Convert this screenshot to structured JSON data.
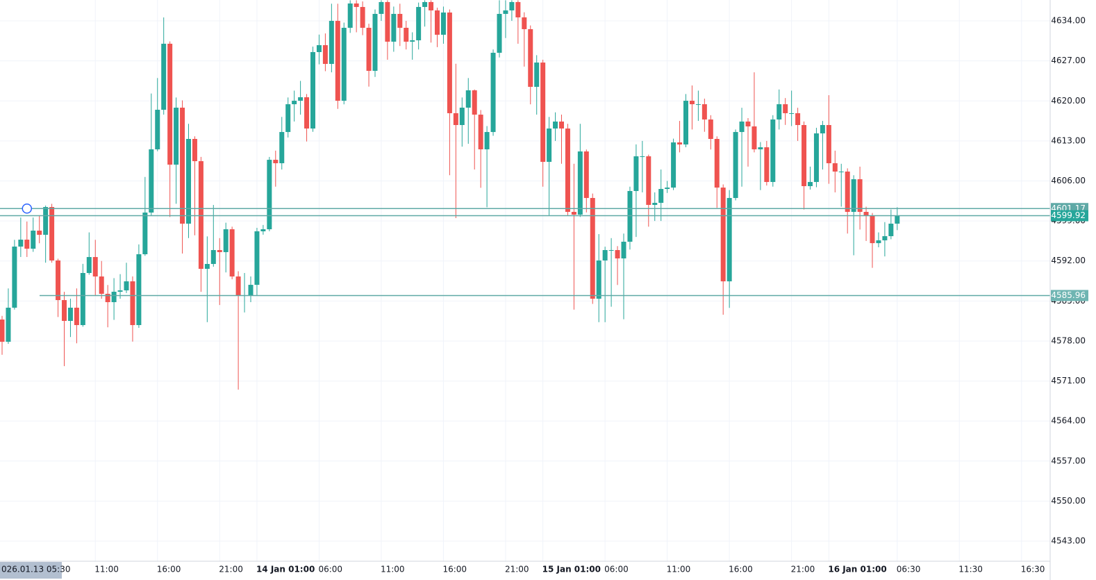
{
  "chart_data": {
    "type": "candlestick",
    "up_color": "#26a69a",
    "down_color": "#ef5350",
    "grid": true,
    "ylim": [
      4539.48,
      4637.65
    ],
    "yticks": [
      {
        "value": 4543,
        "label": "4543.00"
      },
      {
        "value": 4550,
        "label": "4550.00"
      },
      {
        "value": 4557,
        "label": "4557.00"
      },
      {
        "value": 4564,
        "label": "4564.00"
      },
      {
        "value": 4571,
        "label": "4571.00"
      },
      {
        "value": 4578,
        "label": "4578.00"
      },
      {
        "value": 4585,
        "label": "4585.00"
      },
      {
        "value": 4592,
        "label": "4592.00"
      },
      {
        "value": 4599,
        "label": "4599.00"
      },
      {
        "value": 4606,
        "label": "4606.00"
      },
      {
        "value": 4613,
        "label": "4613.00"
      },
      {
        "value": 4620,
        "label": "4620.00"
      },
      {
        "value": 4627,
        "label": "4627.00"
      },
      {
        "value": 4634,
        "label": "4634.00"
      }
    ],
    "price_lines": [
      4601.17,
      4599.92,
      4585.96
    ],
    "crosshair_label": "026.01.13 05:30",
    "categories": [
      null,
      null,
      null,
      null,
      null,
      null,
      null,
      null,
      null,
      null,
      null,
      null,
      null,
      null,
      null,
      "11:00",
      null,
      null,
      null,
      null,
      null,
      null,
      null,
      null,
      null,
      "16:00",
      null,
      null,
      null,
      null,
      null,
      null,
      null,
      null,
      null,
      "21:00",
      null,
      null,
      null,
      null,
      null,
      "14 Jan 01:00",
      null,
      null,
      null,
      null,
      null,
      null,
      null,
      null,
      null,
      "06:00",
      null,
      null,
      null,
      null,
      null,
      null,
      null,
      null,
      null,
      "11:00",
      null,
      null,
      null,
      null,
      null,
      null,
      null,
      null,
      null,
      "16:00",
      null,
      null,
      null,
      null,
      null,
      null,
      null,
      null,
      null,
      "21:00",
      null,
      null,
      null,
      null,
      null,
      "15 Jan 01:00",
      null,
      null,
      null,
      null,
      null,
      null,
      null,
      null,
      null,
      "06:00",
      null,
      null,
      null,
      null,
      null,
      null,
      null,
      null,
      null,
      "11:00",
      null,
      null,
      null,
      null,
      null,
      null,
      null,
      null,
      null,
      "16:00",
      null,
      null,
      null,
      null,
      null,
      null,
      null,
      null,
      null,
      "21:00",
      null,
      null,
      null,
      null,
      null,
      "16 Jan 01:00",
      null,
      null,
      null,
      null,
      null,
      null,
      null,
      null,
      null,
      null,
      "06:30",
      null,
      null,
      null,
      null,
      null,
      null,
      null,
      null,
      null,
      "11:30",
      null,
      null,
      null,
      null,
      null,
      null,
      null,
      null,
      null,
      "16:30",
      null,
      null,
      null,
      null
    ],
    "open": [
      4581.76,
      4577.87,
      4583.83,
      4594.52,
      4595.73,
      4594.15,
      4597.31,
      4596.58,
      4601.44,
      4592.09,
      4585.16,
      4581.52,
      4583.83,
      4580.79,
      4589.9,
      4592.69,
      4589.29,
      4586.26,
      4584.8,
      4586.62,
      4586.86,
      4588.44,
      4580.79,
      4593.18,
      4600.47,
      4611.53,
      4618.45,
      4630.0,
      4608.85,
      4618.82,
      4598.53,
      4613.35,
      4609.46,
      4590.63,
      4591.48,
      4593.91,
      4593.55,
      4597.55,
      4589.29,
      4586.01,
      4586.01,
      4587.83,
      4597.19,
      4597.55,
      4609.7,
      4609.1,
      4614.56,
      4619.42,
      4620.03,
      4620.64,
      4615.17,
      4628.54,
      4629.75,
      4626.47,
      4634.0,
      4620.03,
      4632.79,
      4637.04,
      4636.43,
      4632.79,
      4625.26,
      4635.22,
      4637.29,
      4630.36,
      4635.22,
      4632.79,
      4630.36,
      4630.6,
      4636.43,
      4637.29,
      4635.83,
      4631.57,
      4635.46,
      4617.85,
      4615.78,
      4618.82,
      4621.85,
      4617.6,
      4611.53,
      4614.56,
      4628.42,
      4635.22,
      4635.83,
      4637.29,
      4634.61,
      4632.55,
      4622.46,
      4626.71,
      4609.34,
      4615.17,
      4616.39,
      4615.17,
      4600.59,
      4600.11,
      4611.16,
      4603.02,
      4585.4,
      4592.09,
      4593.91,
      4593.91,
      4592.45,
      4595.37,
      4604.24,
      4610.31,
      4610.31,
      4601.81,
      4602.17,
      4604.6,
      4604.84,
      4612.74,
      4612.38,
      4620.03,
      4619.42,
      4619.42,
      4616.75,
      4613.35,
      4604.84,
      4588.44,
      4603.02,
      4614.56,
      4616.39,
      4615.54,
      4611.53,
      4611.89,
      4605.82,
      4616.75,
      4619.42,
      4617.85,
      4617.85,
      4615.78,
      4605.09,
      4605.82,
      4614.32,
      4615.78,
      4609.1,
      4607.64,
      4607.64,
      4600.59,
      4606.3,
      4600.59,
      4599.98,
      4595.12,
      4595.61,
      4596.34,
      4598.53,
      null,
      null,
      null,
      null,
      null,
      null,
      null,
      null,
      null,
      null,
      null,
      null,
      null,
      null,
      null,
      null,
      null,
      null,
      null,
      null,
      null,
      null,
      null,
      null
    ],
    "high": [
      4582.4,
      4587.2,
      4595.7,
      4599.6,
      4598.9,
      4599.6,
      4600.0,
      4601.7,
      4602.0,
      4592.4,
      4586.6,
      4585.4,
      4587.2,
      4591.5,
      4597.0,
      4595.7,
      4592.0,
      4587.8,
      4589.0,
      4589.7,
      4591.7,
      4589.3,
      4594.9,
      4606.7,
      4621.3,
      4624.0,
      4634.6,
      4630.4,
      4620.6,
      4620.1,
      4616.0,
      4613.8,
      4610.2,
      4596.3,
      4601.8,
      4596.0,
      4598.7,
      4598.0,
      4590.2,
      4589.9,
      4589.3,
      4597.8,
      4598.3,
      4610.2,
      4611.3,
      4617.2,
      4620.6,
      4621.8,
      4623.5,
      4621.2,
      4629.5,
      4631.6,
      4631.8,
      4637.0,
      4637.0,
      4633.7,
      4637.6,
      4637.6,
      4637.4,
      4633.5,
      4636.0,
      4637.6,
      4637.6,
      4636.5,
      4637.0,
      4634.0,
      4632.0,
      4637.2,
      4637.6,
      4637.6,
      4636.3,
      4636.5,
      4636.0,
      4626.5,
      4620.6,
      4624.0,
      4622.0,
      4618.4,
      4615.6,
      4629.0,
      4637.6,
      4637.6,
      4637.6,
      4637.6,
      4635.5,
      4633.2,
      4628.0,
      4627.2,
      4617.2,
      4618.0,
      4617.6,
      4616.0,
      4609.0,
      4616.0,
      4611.5,
      4603.8,
      4596.7,
      4594.5,
      4596.0,
      4594.6,
      4596.8,
      4605.0,
      4612.4,
      4613.0,
      4610.6,
      4604.0,
      4608.0,
      4606.0,
      4613.4,
      4616.5,
      4621.2,
      4622.7,
      4621.8,
      4620.4,
      4617.5,
      4613.8,
      4605.4,
      4604.4,
      4615.0,
      4618.8,
      4617.0,
      4625.0,
      4612.8,
      4613.0,
      4617.5,
      4622.0,
      4620.5,
      4621.8,
      4618.8,
      4616.4,
      4608.5,
      4615.3,
      4616.5,
      4621.0,
      4611.3,
      4609.0,
      4608.2,
      4607.0,
      4608.5,
      4601.5,
      4600.4,
      4597.0,
      4598.8,
      4601.0,
      4601.4,
      null,
      null,
      null,
      null,
      null,
      null,
      null,
      null,
      null,
      null,
      null,
      null,
      null,
      null,
      null,
      null,
      null,
      null,
      null,
      null,
      null,
      null,
      null,
      null
    ],
    "low": [
      4575.6,
      4577.5,
      4583.5,
      4592.7,
      4592.7,
      4593.6,
      4595.1,
      4591.7,
      4591.7,
      4582.2,
      4573.6,
      4578.7,
      4577.6,
      4580.5,
      4589.6,
      4586.0,
      4585.4,
      4580.4,
      4581.7,
      4585.4,
      4586.4,
      4577.9,
      4580.3,
      4592.9,
      4600.0,
      4611.2,
      4617.6,
      4599.7,
      4602.0,
      4593.3,
      4596.0,
      4596.5,
      4586.6,
      4581.3,
      4591.0,
      4584.3,
      4590.0,
      4588.8,
      4569.5,
      4583.0,
      4584.8,
      4586.0,
      4596.6,
      4597.2,
      4605.0,
      4608.0,
      4613.6,
      4616.4,
      4617.6,
      4612.9,
      4614.6,
      4626.4,
      4625.2,
      4625.0,
      4618.6,
      4619.4,
      4631.9,
      4632.0,
      4631.5,
      4622.5,
      4624.2,
      4634.0,
      4627.2,
      4628.6,
      4629.6,
      4629.0,
      4627.2,
      4629.0,
      4633.0,
      4630.2,
      4629.4,
      4630.0,
      4607.0,
      4599.5,
      4612.0,
      4612.5,
      4608.0,
      4604.8,
      4601.4,
      4613.9,
      4627.6,
      4631.0,
      4634.0,
      4630.0,
      4626.0,
      4619.4,
      4617.6,
      4605.0,
      4600.0,
      4613.0,
      4609.0,
      4600.0,
      4583.5,
      4599.7,
      4600.5,
      4584.5,
      4581.3,
      4581.3,
      4584.0,
      4587.8,
      4581.8,
      4594.0,
      4596.2,
      4604.0,
      4598.0,
      4599.0,
      4599.0,
      4603.9,
      4604.4,
      4611.0,
      4611.9,
      4615.0,
      4616.5,
      4614.6,
      4611.5,
      4601.3,
      4582.6,
      4583.8,
      4602.6,
      4605.0,
      4608.5,
      4611.0,
      4604.4,
      4605.2,
      4605.0,
      4615.0,
      4615.8,
      4615.6,
      4613.0,
      4601.0,
      4604.5,
      4604.9,
      4608.0,
      4605.5,
      4604.0,
      4601.5,
      4596.8,
      4593.0,
      4597.5,
      4595.5,
      4590.8,
      4594.4,
      4592.8,
      4595.8,
      4597.4,
      null,
      null,
      null,
      null,
      null,
      null,
      null,
      null,
      null,
      null,
      null,
      null,
      null,
      null,
      null,
      null,
      null,
      null,
      null,
      null,
      null,
      null,
      null,
      null
    ],
    "close": [
      4577.87,
      4583.83,
      4594.52,
      4595.73,
      4594.15,
      4597.31,
      4596.58,
      4601.44,
      4592.09,
      4585.16,
      4581.52,
      4583.83,
      4580.79,
      4589.9,
      4592.69,
      4589.29,
      4586.26,
      4584.8,
      4586.62,
      4586.86,
      4588.44,
      4580.79,
      4593.18,
      4600.47,
      4611.53,
      4618.45,
      4630.0,
      4608.85,
      4618.82,
      4598.53,
      4613.35,
      4609.46,
      4590.63,
      4591.48,
      4593.91,
      4593.55,
      4597.55,
      4589.29,
      4586.01,
      4586.01,
      4587.83,
      4597.19,
      4597.55,
      4609.7,
      4609.1,
      4614.56,
      4619.42,
      4620.03,
      4620.64,
      4615.17,
      4628.54,
      4629.75,
      4626.47,
      4634.0,
      4620.03,
      4632.79,
      4637.04,
      4636.43,
      4632.79,
      4625.26,
      4635.22,
      4637.29,
      4630.36,
      4635.22,
      4632.79,
      4630.36,
      4630.6,
      4636.43,
      4637.29,
      4635.83,
      4631.57,
      4635.46,
      4617.85,
      4615.78,
      4618.82,
      4621.85,
      4617.6,
      4611.53,
      4614.56,
      4628.42,
      4635.22,
      4635.83,
      4637.29,
      4634.61,
      4632.55,
      4622.46,
      4626.71,
      4609.34,
      4615.17,
      4616.39,
      4615.17,
      4600.59,
      4600.11,
      4611.16,
      4603.02,
      4585.4,
      4592.09,
      4593.91,
      4593.91,
      4592.45,
      4595.37,
      4604.24,
      4610.31,
      4610.31,
      4601.81,
      4602.17,
      4604.6,
      4604.84,
      4612.74,
      4612.38,
      4620.03,
      4619.42,
      4619.42,
      4616.75,
      4613.35,
      4604.84,
      4588.44,
      4603.02,
      4614.56,
      4616.39,
      4615.54,
      4611.53,
      4611.89,
      4605.82,
      4616.75,
      4619.42,
      4617.85,
      4617.85,
      4615.78,
      4605.09,
      4605.82,
      4614.32,
      4615.78,
      4609.1,
      4607.64,
      4607.64,
      4600.59,
      4606.3,
      4600.59,
      4599.98,
      4595.12,
      4595.61,
      4596.34,
      4598.53,
      4599.92,
      null,
      null,
      null,
      null,
      null,
      null,
      null,
      null,
      null,
      null,
      null,
      null,
      null,
      null,
      null,
      null,
      null,
      null,
      null,
      null,
      null,
      null,
      null,
      null
    ]
  }
}
